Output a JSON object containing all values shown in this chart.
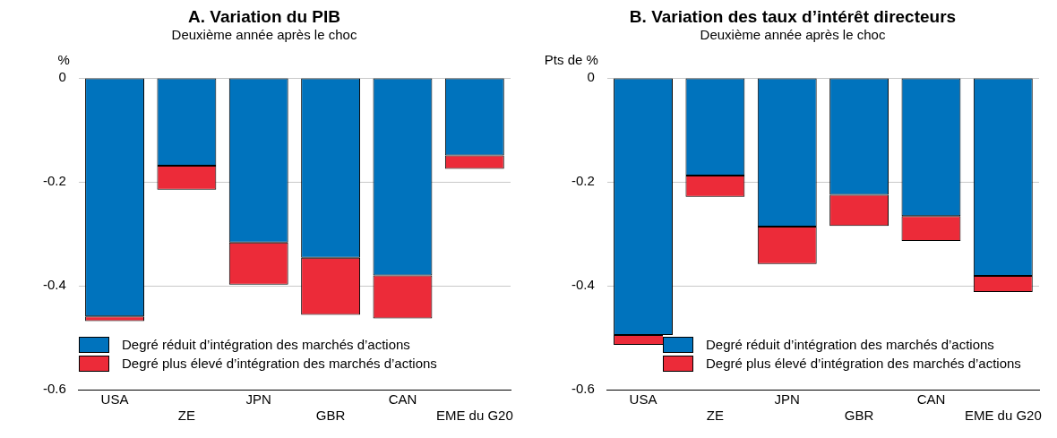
{
  "chart_data": [
    {
      "type": "bar",
      "title": "A. Variation du PIB",
      "subtitle": "Deuxième année après le choc",
      "ylabel": "%",
      "stacked": true,
      "grid": "y",
      "legend": "bottom",
      "categories": [
        "USA",
        "ZE",
        "JPN",
        "GBR",
        "CAN",
        "EME du G20"
      ],
      "ylim": [
        -0.6,
        0
      ],
      "yticks": [
        0,
        -0.2,
        -0.4,
        -0.6
      ],
      "series": [
        {
          "name": "Degré réduit d’intégration des marchés d’actions",
          "color": "#0073bd",
          "values": [
            -0.459,
            -0.169,
            -0.317,
            -0.346,
            -0.38,
            -0.149
          ]
        },
        {
          "name": "Degré plus élevé d’intégration des marchés d’actions",
          "color": "#ec2b39",
          "values": [
            -0.009,
            -0.046,
            -0.081,
            -0.11,
            -0.083,
            -0.026
          ]
        }
      ]
    },
    {
      "type": "bar",
      "title": "B. Variation des taux d’intérêt directeurs",
      "subtitle": "Deuxième année après le choc",
      "ylabel": "Pts de %",
      "stacked": true,
      "grid": "y",
      "legend": "bottom",
      "categories": [
        "USA",
        "ZE",
        "JPN",
        "GBR",
        "CAN",
        "EME du G20"
      ],
      "ylim": [
        -0.6,
        0
      ],
      "yticks": [
        0,
        -0.2,
        -0.4,
        -0.6
      ],
      "series": [
        {
          "name": "Degré réduit d’intégration des marchés d’actions",
          "color": "#0073bd",
          "values": [
            -0.495,
            -0.188,
            -0.286,
            -0.225,
            -0.266,
            -0.381
          ]
        },
        {
          "name": "Degré plus élevé d’intégration des marchés d’actions",
          "color": "#ec2b39",
          "values": [
            -0.019,
            -0.041,
            -0.072,
            -0.06,
            -0.048,
            -0.031
          ]
        }
      ]
    }
  ]
}
